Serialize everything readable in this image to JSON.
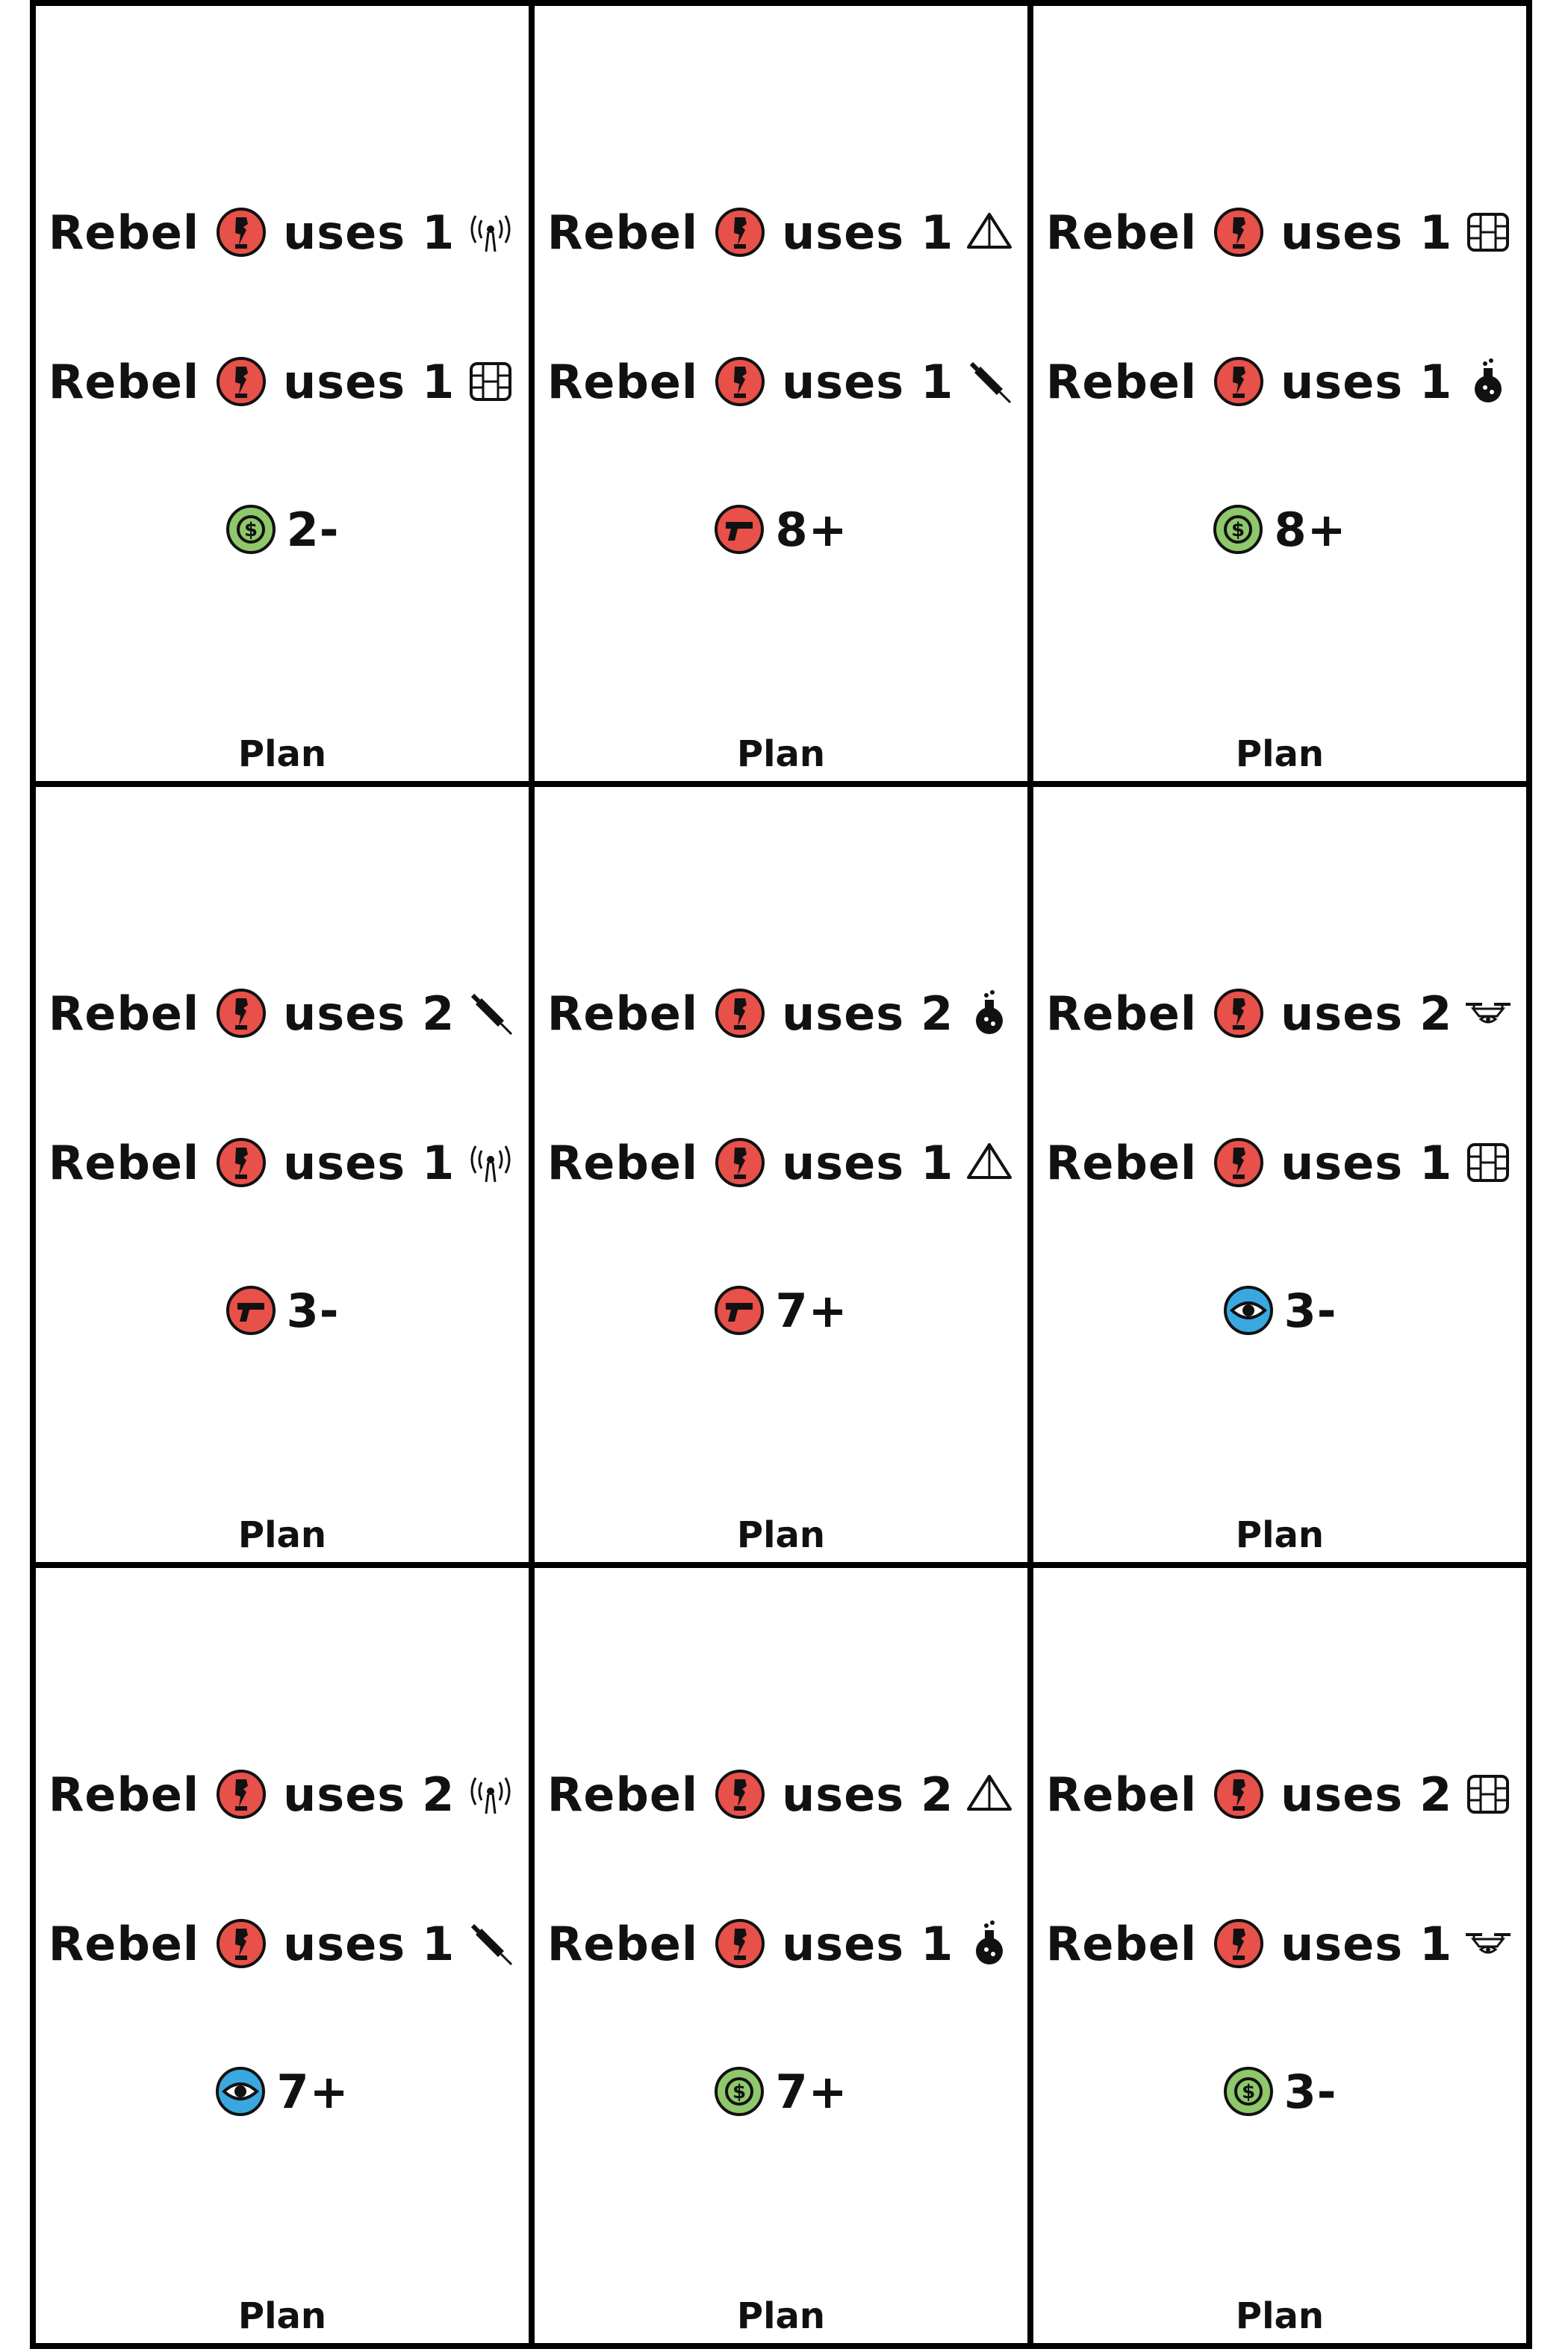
{
  "footer_label": "Plan",
  "word_rebel": "Rebel",
  "word_uses": "uses",
  "colors": {
    "rebel": "#e8504a",
    "money": "#8ec86a",
    "gun": "#e8504a",
    "eye": "#3aa8e0"
  },
  "cards": [
    {
      "lines": [
        {
          "count": "1",
          "resource": "radio-tower-icon"
        },
        {
          "count": "1",
          "resource": "sim-chip-icon"
        }
      ],
      "check": {
        "icon": "money-icon",
        "value": "2-"
      }
    },
    {
      "lines": [
        {
          "count": "1",
          "resource": "pyramid-icon"
        },
        {
          "count": "1",
          "resource": "syringe-icon"
        }
      ],
      "check": {
        "icon": "gun-icon",
        "value": "8+"
      }
    },
    {
      "lines": [
        {
          "count": "1",
          "resource": "sim-chip-icon"
        },
        {
          "count": "1",
          "resource": "potion-flask-icon"
        }
      ],
      "check": {
        "icon": "money-icon",
        "value": "8+"
      }
    },
    {
      "lines": [
        {
          "count": "2",
          "resource": "syringe-icon"
        },
        {
          "count": "1",
          "resource": "radio-tower-icon"
        }
      ],
      "check": {
        "icon": "gun-icon",
        "value": "3-"
      }
    },
    {
      "lines": [
        {
          "count": "2",
          "resource": "potion-flask-icon"
        },
        {
          "count": "1",
          "resource": "pyramid-icon"
        }
      ],
      "check": {
        "icon": "gun-icon",
        "value": "7+"
      }
    },
    {
      "lines": [
        {
          "count": "2",
          "resource": "drone-icon"
        },
        {
          "count": "1",
          "resource": "sim-chip-icon"
        }
      ],
      "check": {
        "icon": "eye-icon",
        "value": "3-"
      }
    },
    {
      "lines": [
        {
          "count": "2",
          "resource": "radio-tower-icon"
        },
        {
          "count": "1",
          "resource": "syringe-icon"
        }
      ],
      "check": {
        "icon": "eye-icon",
        "value": "7+"
      }
    },
    {
      "lines": [
        {
          "count": "2",
          "resource": "pyramid-icon"
        },
        {
          "count": "1",
          "resource": "potion-flask-icon"
        }
      ],
      "check": {
        "icon": "money-icon",
        "value": "7+"
      }
    },
    {
      "lines": [
        {
          "count": "2",
          "resource": "sim-chip-icon"
        },
        {
          "count": "1",
          "resource": "drone-icon"
        }
      ],
      "check": {
        "icon": "money-icon",
        "value": "3-"
      }
    }
  ]
}
